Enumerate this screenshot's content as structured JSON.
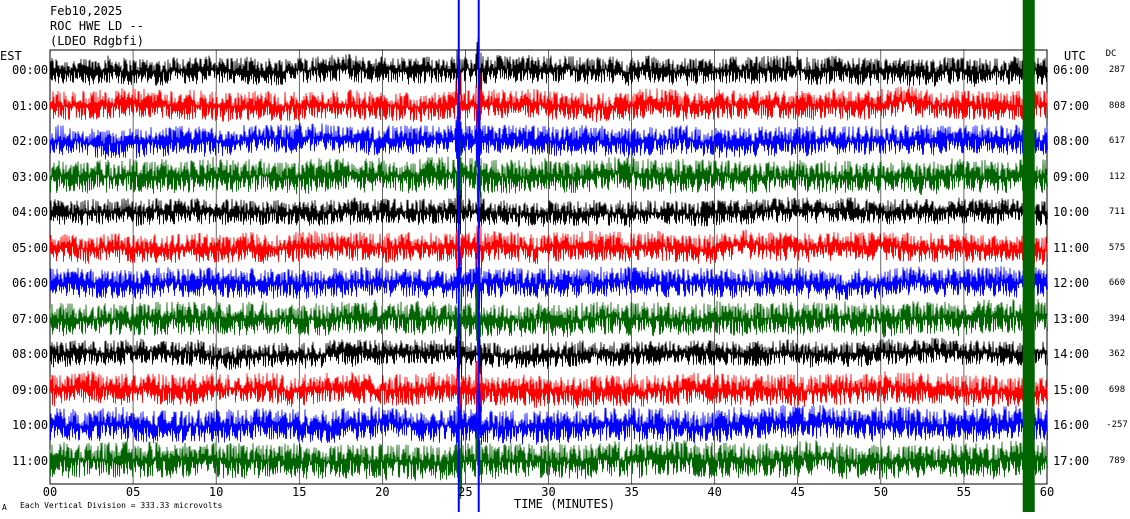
{
  "header": {
    "date": "Feb10,2025",
    "station": "ROC HWE LD --",
    "network": "(LDEO Rdgbfi)"
  },
  "axes": {
    "left_zone": "EST",
    "right_zone": "UTC",
    "dc_label": "DC",
    "x_title": "TIME (MINUTES)",
    "footer_note": "Each Vertical Division = 333.33 microvolts",
    "footer_mark": "A"
  },
  "chart_data": {
    "type": "line",
    "title": "",
    "xlabel": "TIME (MINUTES)",
    "xlim": [
      0,
      60
    ],
    "x_ticks": [
      "00",
      "05",
      "10",
      "15",
      "20",
      "25",
      "30",
      "35",
      "40",
      "45",
      "50",
      "55",
      "60"
    ],
    "grid": true,
    "series": [
      {
        "left": "00:00",
        "right": "06:00",
        "dc": "287",
        "color": "#000000",
        "amp": 14
      },
      {
        "left": "01:00",
        "right": "07:00",
        "dc": "808",
        "color": "#ff0000",
        "amp": 15
      },
      {
        "left": "02:00",
        "right": "08:00",
        "dc": "617",
        "color": "#0000ff",
        "amp": 15
      },
      {
        "left": "03:00",
        "right": "09:00",
        "dc": "112",
        "color": "#006400",
        "amp": 17
      },
      {
        "left": "04:00",
        "right": "10:00",
        "dc": "711",
        "color": "#000000",
        "amp": 13
      },
      {
        "left": "05:00",
        "right": "11:00",
        "dc": "575",
        "color": "#ff0000",
        "amp": 15
      },
      {
        "left": "06:00",
        "right": "12:00",
        "dc": "660",
        "color": "#0000ff",
        "amp": 15
      },
      {
        "left": "07:00",
        "right": "13:00",
        "dc": "394",
        "color": "#006400",
        "amp": 17
      },
      {
        "left": "08:00",
        "right": "14:00",
        "dc": "362",
        "color": "#000000",
        "amp": 13
      },
      {
        "left": "09:00",
        "right": "15:00",
        "dc": "698",
        "color": "#ff0000",
        "amp": 16
      },
      {
        "left": "10:00",
        "right": "16:00",
        "dc": "-257",
        "color": "#0000ff",
        "amp": 17
      },
      {
        "left": "11:00",
        "right": "17:00",
        "dc": "789",
        "color": "#006400",
        "amp": 18
      }
    ],
    "events": [
      {
        "minute": 24.6,
        "note": "spike"
      },
      {
        "minute": 25.8,
        "note": "spike"
      },
      {
        "minute": 58.9,
        "note": "burst"
      }
    ]
  }
}
